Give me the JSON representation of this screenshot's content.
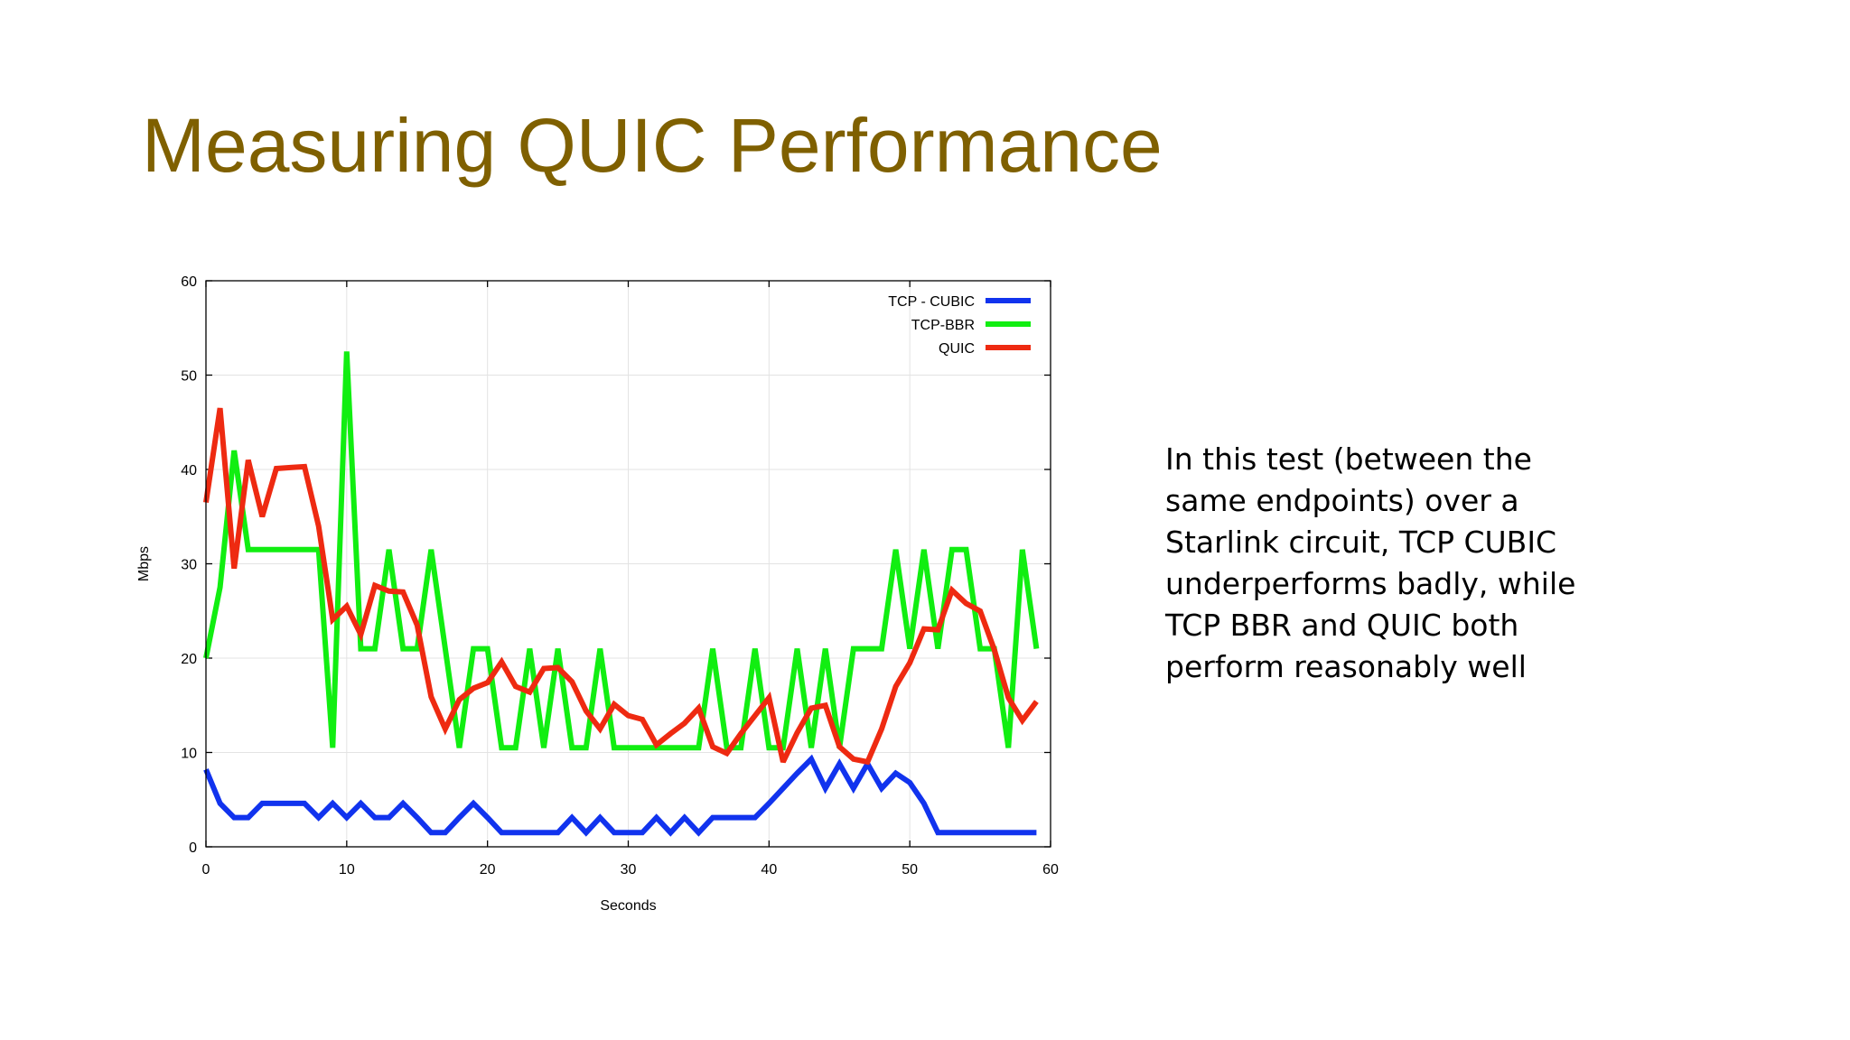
{
  "slide": {
    "title": "Measuring QUIC Performance",
    "title_color": "#7f6000",
    "body_text": "In this test (between the same endpoints) over a Starlink circuit, TCP CUBIC underperforms badly, while TCP BBR and QUIC both perform reasonably well"
  },
  "chart_data": {
    "type": "line",
    "title": "",
    "xlabel": "Seconds",
    "ylabel": "Mbps",
    "xlim": [
      0,
      60
    ],
    "ylim": [
      0,
      60
    ],
    "xticks": [
      0,
      10,
      20,
      30,
      40,
      50,
      60
    ],
    "yticks": [
      0,
      10,
      20,
      30,
      40,
      50,
      60
    ],
    "grid": true,
    "legend_position": "top-right",
    "x": [
      0,
      1,
      2,
      3,
      4,
      5,
      6,
      7,
      8,
      9,
      10,
      11,
      12,
      13,
      14,
      15,
      16,
      17,
      18,
      19,
      20,
      21,
      22,
      23,
      24,
      25,
      26,
      27,
      28,
      29,
      30,
      31,
      32,
      33,
      34,
      35,
      36,
      37,
      38,
      39,
      40,
      41,
      42,
      43,
      44,
      45,
      46,
      47,
      48,
      49,
      50,
      51,
      52,
      53,
      54,
      55,
      56,
      57,
      58,
      59
    ],
    "series": [
      {
        "name": "TCP - CUBIC",
        "color": "#1133ee",
        "values": [
          8.2,
          4.6,
          3.1,
          3.1,
          4.6,
          4.6,
          4.6,
          4.6,
          3.1,
          4.6,
          3.1,
          4.6,
          3.1,
          3.1,
          4.6,
          3.1,
          1.5,
          1.5,
          3.1,
          4.6,
          3.1,
          1.5,
          1.5,
          1.5,
          1.5,
          1.5,
          3.1,
          1.5,
          3.1,
          1.5,
          1.5,
          1.5,
          3.1,
          1.5,
          3.1,
          1.5,
          3.1,
          3.1,
          3.1,
          3.1,
          4.6,
          6.2,
          7.8,
          9.3,
          6.2,
          8.8,
          6.2,
          8.8,
          6.2,
          7.8,
          6.8,
          4.6,
          1.5,
          1.5,
          1.5,
          1.5,
          1.5,
          1.5,
          1.5,
          1.5
        ]
      },
      {
        "name": "TCP-BBR",
        "color": "#11ee11",
        "values": [
          20,
          27.5,
          42,
          31.5,
          31.5,
          31.5,
          31.5,
          31.5,
          31.5,
          10.5,
          52.5,
          21,
          21,
          31.5,
          21,
          21,
          31.5,
          21,
          10.5,
          21,
          21,
          10.5,
          10.5,
          21,
          10.5,
          21,
          10.5,
          10.5,
          21,
          10.5,
          10.5,
          10.5,
          10.5,
          10.5,
          10.5,
          10.5,
          21,
          10.5,
          10.5,
          21,
          10.5,
          10.5,
          21,
          10.5,
          21,
          10.5,
          21,
          21,
          21,
          31.5,
          21,
          31.5,
          21,
          31.5,
          31.5,
          21,
          21,
          10.5,
          31.5,
          21
        ]
      },
      {
        "name": "QUIC",
        "color": "#ee2a11",
        "values": [
          36.5,
          46.5,
          29.5,
          41,
          35,
          40.1,
          40.2,
          40.3,
          34,
          24.1,
          25.5,
          22.5,
          27.7,
          27.1,
          27,
          23.5,
          15.9,
          12.5,
          15.6,
          16.8,
          17.4,
          19.6,
          17,
          16.4,
          18.9,
          19,
          17.5,
          14.4,
          12.5,
          15.1,
          13.9,
          13.5,
          10.8,
          12,
          13.1,
          14.7,
          10.6,
          9.9,
          12,
          13.9,
          15.8,
          9,
          12.1,
          14.7,
          15,
          10.6,
          9.3,
          9,
          12.5,
          17,
          19.5,
          23.1,
          23,
          27.2,
          25.8,
          25,
          20.9,
          15.8,
          13.4,
          15.4
        ]
      }
    ]
  }
}
